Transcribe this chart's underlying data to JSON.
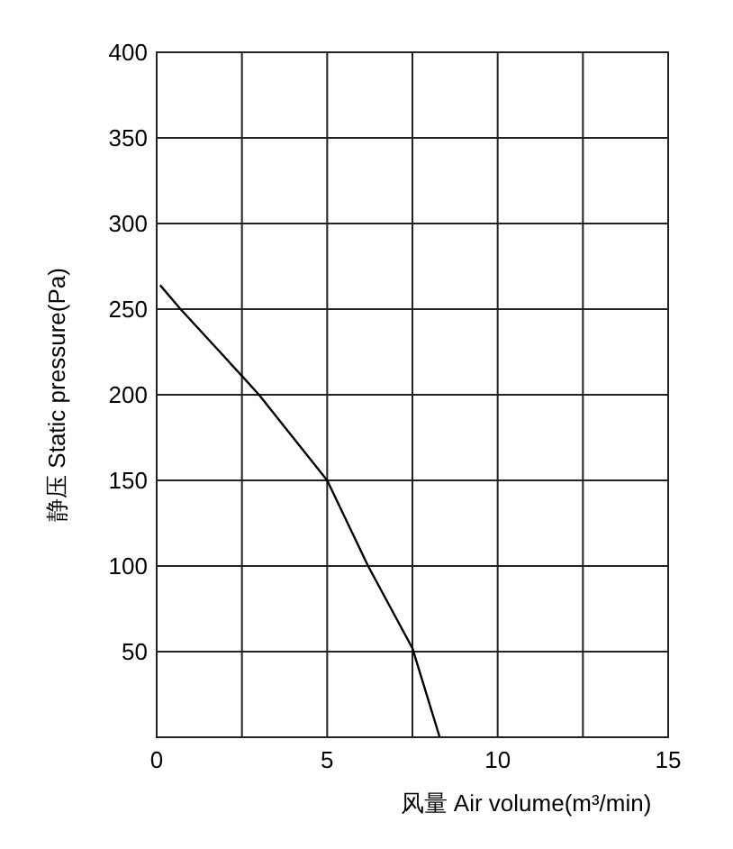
{
  "chart_data": {
    "type": "line",
    "xlabel": "风量 Air volume(m³/min)",
    "ylabel": "静压 Static pressure(Pa)",
    "xlim": [
      0,
      15
    ],
    "ylim": [
      0,
      400
    ],
    "xticks": [
      0,
      {
        "value": 2.5,
        "label": null
      },
      5,
      {
        "value": 7.5,
        "label": null
      },
      10,
      {
        "value": 12.5,
        "label": null
      },
      15
    ],
    "yticks": [
      50,
      100,
      150,
      200,
      250,
      300,
      350,
      400
    ],
    "grid": true,
    "marker": "none",
    "line_style": "solid",
    "series": [
      {
        "color": "#000000",
        "x": [
          0.1,
          0.7,
          2.5,
          3,
          5,
          6.2,
          7.5,
          8.3
        ],
        "values": [
          264,
          250,
          211,
          200,
          150,
          100,
          52,
          0
        ]
      }
    ]
  }
}
